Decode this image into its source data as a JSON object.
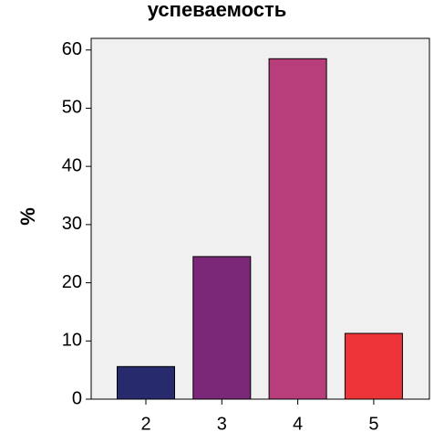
{
  "chart_data": {
    "type": "bar",
    "title": "успеваемость",
    "y_label": "%",
    "categories": [
      "2",
      "3",
      "4",
      "5"
    ],
    "values": [
      5.6,
      24.5,
      58.5,
      11.3
    ],
    "colors": [
      "#272b6e",
      "#7a2877",
      "#b83e7b",
      "#ee3339"
    ],
    "ylim": [
      0,
      62
    ],
    "yticks": [
      0,
      10,
      20,
      30,
      40,
      50,
      60
    ]
  }
}
